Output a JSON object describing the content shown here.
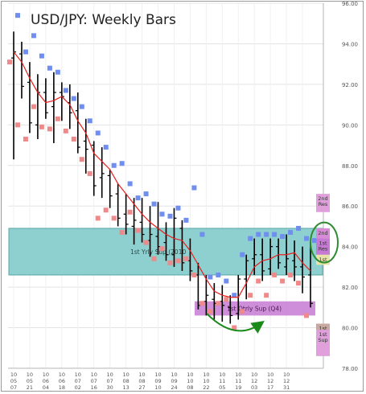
{
  "chart_data": {
    "type": "bar",
    "title": "USD/JPY: Weekly Bars",
    "xlabel": "",
    "ylabel": "",
    "ylim": [
      78,
      96
    ],
    "yticks": [
      "78.00",
      "80.00",
      "82.00",
      "84.00",
      "86.00",
      "88.00",
      "90.00",
      "92.00",
      "94.00",
      "96.00"
    ],
    "ytick_values": [
      78,
      80,
      82,
      84,
      86,
      88,
      90,
      92,
      94,
      96
    ],
    "x_labels": [
      [
        "10",
        "05",
        "07"
      ],
      [
        "10",
        "05",
        "21"
      ],
      [
        "10",
        "06",
        "04"
      ],
      [
        "10",
        "06",
        "18"
      ],
      [
        "10",
        "07",
        "02"
      ],
      [
        "10",
        "07",
        "16"
      ],
      [
        "10",
        "07",
        "30"
      ],
      [
        "10",
        "08",
        "13"
      ],
      [
        "10",
        "08",
        "27"
      ],
      [
        "10",
        "09",
        "10"
      ],
      [
        "10",
        "09",
        "24"
      ],
      [
        "10",
        "10",
        "08"
      ],
      [
        "10",
        "10",
        "22"
      ],
      [
        "10",
        "11",
        "05"
      ],
      [
        "10",
        "11",
        "19"
      ],
      [
        "10",
        "12",
        "03"
      ],
      [
        "10",
        "12",
        "17"
      ],
      [
        "10",
        "12",
        "31"
      ]
    ],
    "ohlc": [
      [
        93.3,
        94.6,
        88.3,
        93.6
      ],
      [
        93.5,
        94.1,
        91.3,
        91.9
      ],
      [
        92.1,
        93.1,
        89.6,
        90.1
      ],
      [
        90.0,
        92.5,
        89.3,
        91.6
      ],
      [
        91.6,
        92.3,
        90.3,
        90.6
      ],
      [
        90.9,
        92.6,
        89.1,
        91.6
      ],
      [
        91.6,
        92.1,
        90.2,
        91.4
      ],
      [
        91.1,
        92.0,
        89.8,
        90.6
      ],
      [
        90.7,
        91.6,
        88.6,
        88.9
      ],
      [
        89.2,
        90.3,
        87.6,
        88.8
      ],
      [
        89.0,
        89.2,
        86.5,
        87.0
      ],
      [
        87.4,
        88.9,
        86.4,
        87.6
      ],
      [
        87.5,
        87.8,
        85.9,
        86.5
      ],
      [
        86.6,
        87.1,
        85.0,
        85.4
      ],
      [
        85.6,
        86.6,
        84.6,
        85.1
      ],
      [
        85.0,
        86.4,
        84.1,
        85.3
      ],
      [
        85.2,
        86.4,
        84.2,
        84.6
      ],
      [
        84.3,
        86.0,
        83.5,
        84.6
      ],
      [
        84.5,
        86.2,
        83.6,
        84.0
      ],
      [
        84.2,
        85.2,
        83.3,
        83.6
      ],
      [
        83.6,
        85.9,
        83.0,
        85.4
      ],
      [
        84.9,
        85.3,
        82.8,
        83.2
      ],
      [
        83.3,
        84.4,
        82.3,
        82.8
      ],
      [
        82.6,
        83.2,
        80.9,
        81.1
      ],
      [
        81.3,
        82.6,
        80.6,
        81.6
      ],
      [
        81.4,
        82.2,
        80.4,
        81.2
      ],
      [
        81.3,
        82.1,
        80.3,
        81.1
      ],
      [
        81.0,
        81.6,
        80.2,
        80.6
      ],
      [
        80.7,
        82.6,
        80.4,
        82.4
      ],
      [
        82.4,
        83.6,
        81.4,
        83.3
      ],
      [
        83.4,
        84.4,
        82.6,
        83.6
      ],
      [
        83.6,
        84.4,
        82.3,
        82.8
      ],
      [
        82.9,
        84.4,
        82.6,
        84.0
      ],
      [
        84.0,
        84.4,
        82.9,
        83.2
      ],
      [
        83.0,
        84.6,
        82.6,
        83.4
      ],
      [
        83.3,
        84.3,
        82.3,
        83.0
      ],
      [
        83.0,
        84.0,
        81.7,
        82.5
      ],
      [
        82.6,
        84.2,
        81.0,
        81.2
      ]
    ],
    "projected_high": [
      95.4,
      93.6,
      94.4,
      93.4,
      92.8,
      92.6,
      91.7,
      91.3,
      90.9,
      90.2,
      89.6,
      88.9,
      88.0,
      88.1,
      87.1,
      86.4,
      86.6,
      86.1,
      85.6,
      85.5,
      85.9,
      85.3,
      86.9,
      84.6,
      82.5,
      82.6,
      82.3,
      81.6,
      83.6,
      84.4,
      84.6,
      84.6,
      84.6,
      84.5,
      84.7,
      84.9,
      84.4,
      84.3
    ],
    "projected_low": [
      93.1,
      90.0,
      89.3,
      90.9,
      89.9,
      89.8,
      90.3,
      89.7,
      89.3,
      88.3,
      87.6,
      85.4,
      85.8,
      85.4,
      84.7,
      85.7,
      84.8,
      84.2,
      83.4,
      83.9,
      83.2,
      83.3,
      83.4,
      82.6,
      81.2,
      80.8,
      81.2,
      81.4,
      80.0,
      80.8,
      81.6,
      82.3,
      81.6,
      82.6,
      82.3,
      82.6,
      82.2,
      80.6
    ],
    "ma": [
      93.6,
      93.1,
      92.3,
      91.6,
      91.1,
      91.2,
      91.4,
      91.0,
      90.2,
      89.6,
      88.6,
      88.2,
      87.8,
      87.1,
      86.6,
      86.1,
      85.6,
      85.2,
      84.9,
      84.6,
      84.4,
      84.3,
      83.8,
      83.1,
      82.4,
      81.8,
      81.6,
      81.5,
      81.5,
      82.2,
      83.0,
      83.3,
      83.4,
      83.6,
      83.6,
      83.7,
      83.2,
      82.8
    ],
    "colors": {
      "bars": "#000000",
      "projected_high": "#6f8ef0",
      "projected_low": "#f08a8a",
      "ma": "#e62020",
      "support_band": "#8ecfcf",
      "support_band_border": "#5aa6a6",
      "q4_zone": "#c77ad3",
      "zone_box": "#d98ad6",
      "arrow": "#1a8a1a",
      "highlight_ellipse": "#2e8b2e",
      "highlight_fill": "#e8e4a8",
      "grid": "#e3e3e3",
      "axis_text": "#555555"
    },
    "zones": [
      {
        "label": "1st Yrly Sup (2010",
        "low": 82.6,
        "high": 84.9,
        "kind": "yearly_support"
      },
      {
        "label": "1st Qtrly Sup (Q4)",
        "low": 80.6,
        "high": 81.3,
        "kind": "quarterly_support"
      }
    ],
    "level_boxes": [
      {
        "line1": "2nd",
        "line2": "Res",
        "low": 85.7,
        "high": 86.6,
        "fill": "#e0a0dc"
      },
      {
        "line1": "2nd",
        "line2": "",
        "low": 84.4,
        "high": 84.9,
        "fill": "#d98ad6"
      },
      {
        "line1": "1st",
        "line2": "Res",
        "low": 83.3,
        "high": 84.4,
        "fill": "#c77ad3"
      },
      {
        "line1": "1st",
        "line2": "",
        "low": 83.1,
        "high": 83.6,
        "fill": "#e8e4a8"
      },
      {
        "line1": "1st",
        "line2": "",
        "low": 79.8,
        "high": 80.2,
        "fill": "#c9a8a0"
      },
      {
        "line1": "1st",
        "line2": "Sup",
        "low": 78.6,
        "high": 79.9,
        "fill": "#e0a0dc"
      }
    ]
  }
}
